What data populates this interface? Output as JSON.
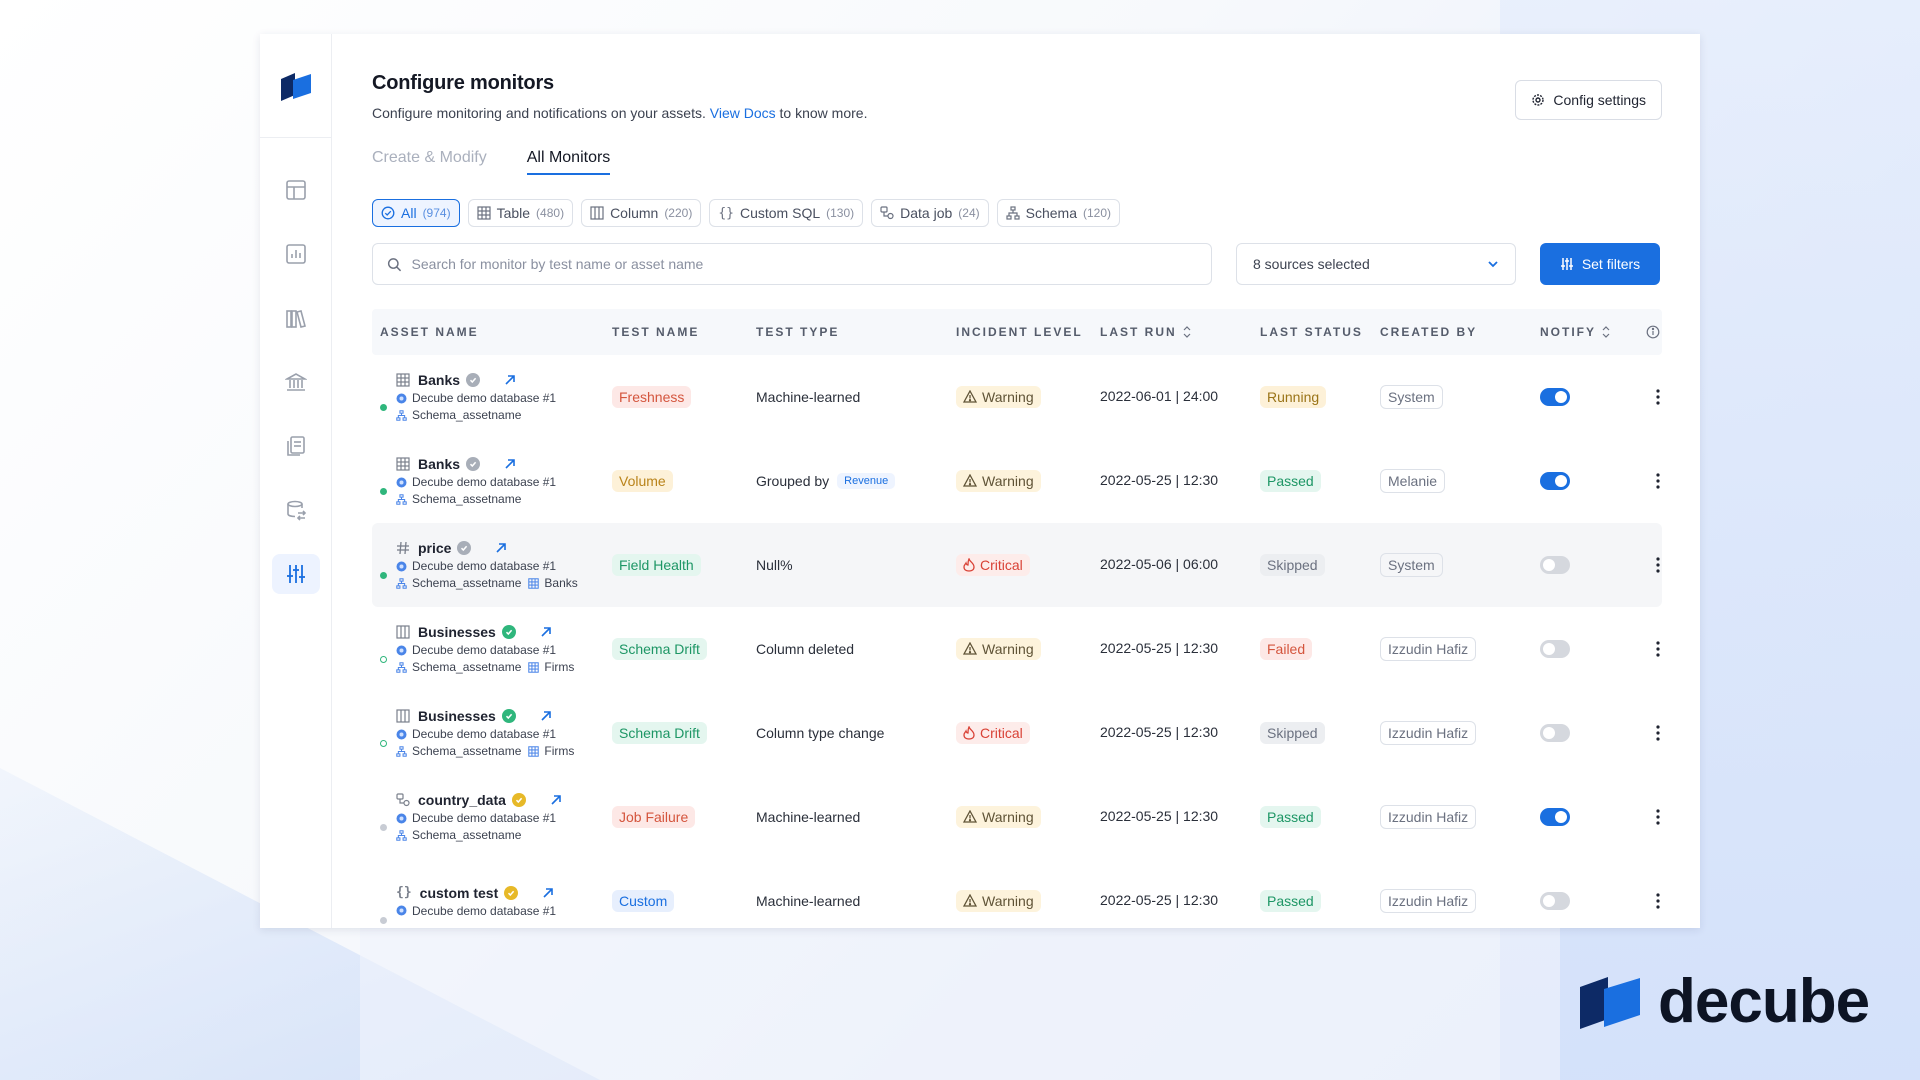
{
  "header": {
    "title": "Configure monitors",
    "subtitle_prefix": "Configure monitoring and notifications on your assets.",
    "docs_link": "View Docs",
    "subtitle_suffix": "to know more.",
    "config_button": "Config settings"
  },
  "tabs": [
    {
      "label": "Create & Modify",
      "active": false
    },
    {
      "label": "All Monitors",
      "active": true
    }
  ],
  "filters": [
    {
      "label": "All",
      "count": "(974)",
      "icon": "check-circle-icon",
      "active": true
    },
    {
      "label": "Table",
      "count": "(480)",
      "icon": "table-icon",
      "active": false
    },
    {
      "label": "Column",
      "count": "(220)",
      "icon": "column-icon",
      "active": false
    },
    {
      "label": "Custom SQL",
      "count": "(130)",
      "icon": "braces-icon",
      "active": false
    },
    {
      "label": "Data job",
      "count": "(24)",
      "icon": "datajob-icon",
      "active": false
    },
    {
      "label": "Schema",
      "count": "(120)",
      "icon": "schema-icon",
      "active": false
    }
  ],
  "search": {
    "placeholder": "Search for monitor by test name or asset name"
  },
  "sources": {
    "label": "8 sources selected"
  },
  "set_filters": "Set filters",
  "table": {
    "headers": {
      "asset": "ASSET NAME",
      "test_name": "TEST NAME",
      "test_type": "TEST TYPE",
      "incident": "INCIDENT LEVEL",
      "last_run": "LAST RUN",
      "last_status": "LAST STATUS",
      "created_by": "CREATED BY",
      "notify": "NOTIFY"
    },
    "rows": [
      {
        "asset": "Banks",
        "asset_icon": "table-icon",
        "verified": "grey",
        "db": "Decube demo database #1",
        "schema": "Schema_assetname",
        "table_ref": "",
        "dot": "green",
        "test_name": "Freshness",
        "test_tag": "fresh",
        "test_type": "Machine-learned",
        "test_type_tag": "",
        "incident": "Warning",
        "incident_level": "warn",
        "last_run": "2022-06-01 | 24:00",
        "status": "Running",
        "status_class": "running",
        "created_by": "System",
        "notify": true
      },
      {
        "asset": "Banks",
        "asset_icon": "table-icon",
        "verified": "grey",
        "db": "Decube demo database #1",
        "schema": "Schema_assetname",
        "table_ref": "",
        "dot": "green",
        "test_name": "Volume",
        "test_tag": "volume",
        "test_type": "Grouped by",
        "test_type_tag": "Revenue",
        "incident": "Warning",
        "incident_level": "warn",
        "last_run": "2022-05-25 | 12:30",
        "status": "Passed",
        "status_class": "passed",
        "created_by": "Melanie",
        "notify": true
      },
      {
        "asset": "price",
        "asset_icon": "hash-icon",
        "verified": "grey",
        "db": "Decube demo database #1",
        "schema": "Schema_assetname",
        "table_ref": "Banks",
        "dot": "green",
        "test_name": "Field Health",
        "test_tag": "fh",
        "test_type": "Null%",
        "test_type_tag": "",
        "incident": "Critical",
        "incident_level": "crit",
        "last_run": "2022-05-06 | 06:00",
        "status": "Skipped",
        "status_class": "skipped",
        "created_by": "System",
        "notify": false
      },
      {
        "asset": "Businesses",
        "asset_icon": "column-icon",
        "verified": "green",
        "db": "Decube demo database #1",
        "schema": "Schema_assetname",
        "table_ref": "Firms",
        "dot": "green-o",
        "test_name": "Schema Drift",
        "test_tag": "sd",
        "test_type": "Column deleted",
        "test_type_tag": "",
        "incident": "Warning",
        "incident_level": "warn",
        "last_run": "2022-05-25 | 12:30",
        "status": "Failed",
        "status_class": "failed",
        "created_by": "Izzudin Hafiz",
        "notify": false
      },
      {
        "asset": "Businesses",
        "asset_icon": "column-icon",
        "verified": "green",
        "db": "Decube demo database #1",
        "schema": "Schema_assetname",
        "table_ref": "Firms",
        "dot": "green-o",
        "test_name": "Schema Drift",
        "test_tag": "sd",
        "test_type": "Column type change",
        "test_type_tag": "",
        "incident": "Critical",
        "incident_level": "crit",
        "last_run": "2022-05-25 | 12:30",
        "status": "Skipped",
        "status_class": "skipped",
        "created_by": "Izzudin Hafiz",
        "notify": false
      },
      {
        "asset": "country_data",
        "asset_icon": "datajob-icon",
        "verified": "yellow",
        "db": "Decube demo database #1",
        "schema": "Schema_assetname",
        "table_ref": "",
        "dot": "grey",
        "test_name": "Job Failure",
        "test_tag": "jf",
        "test_type": "Machine-learned",
        "test_type_tag": "",
        "incident": "Warning",
        "incident_level": "warn",
        "last_run": "2022-05-25 | 12:30",
        "status": "Passed",
        "status_class": "passed",
        "created_by": "Izzudin Hafiz",
        "notify": true
      },
      {
        "asset": "custom test",
        "asset_icon": "braces-icon",
        "verified": "yellow",
        "db": "Decube demo database #1",
        "schema": "",
        "table_ref": "",
        "dot": "grey",
        "test_name": "Custom",
        "test_tag": "custom",
        "test_type": "Machine-learned",
        "test_type_tag": "",
        "incident": "Warning",
        "incident_level": "warn",
        "last_run": "2022-05-25 | 12:30",
        "status": "Passed",
        "status_class": "passed",
        "created_by": "Izzudin Hafiz",
        "notify": false
      }
    ]
  },
  "brand": {
    "name": "decube"
  },
  "colors": {
    "accent": "#1a6fe0",
    "brand_dark": "#0d1424"
  }
}
